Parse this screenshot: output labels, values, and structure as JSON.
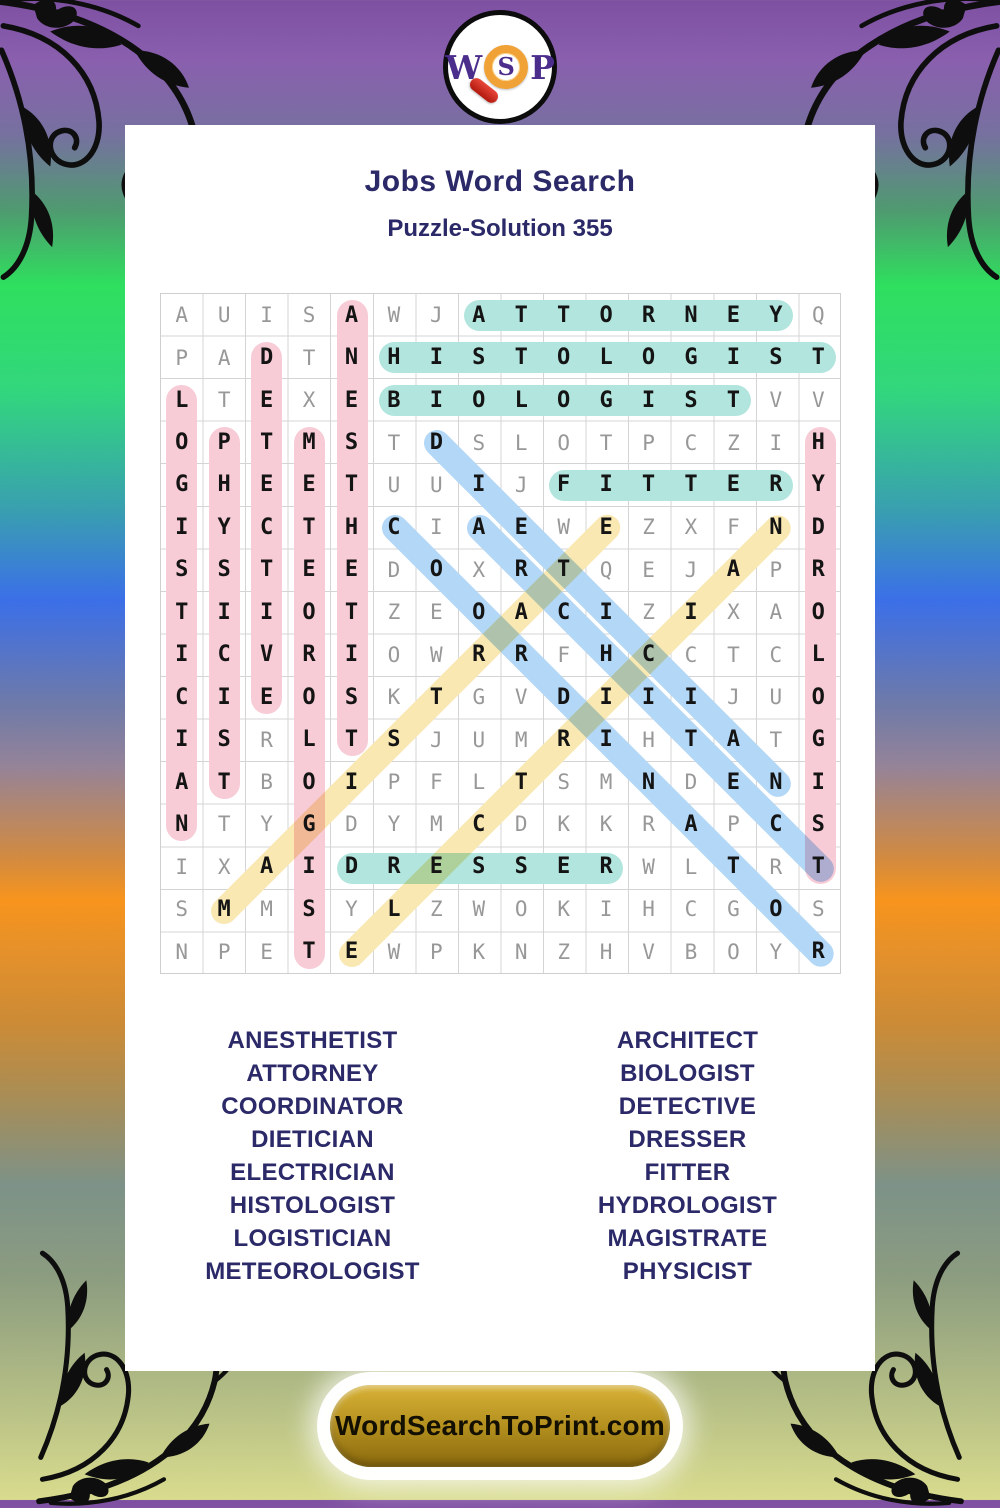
{
  "logo": {
    "w": "W",
    "s": "S",
    "p": "P"
  },
  "header": {
    "title": "Jobs Word Search",
    "subtitle": "Puzzle-Solution 355"
  },
  "puzzle": {
    "grid_size": 16,
    "rows": [
      "AUISAWJATTORNEYQ",
      "PADTNHISTOLOGIST",
      "LTEXEBIOLOGISTVV",
      "OPTMSTDSLOTPCZIH",
      "GHEETUUIJFITTERY",
      "IYCTHCIAEWEZXFND",
      "SSTEEDOXRTQEJAPR",
      "TIIOTZEOACIZIXAO",
      "ICVRIOWRRFHCCTCL",
      "CIEOSKTGVDIIIJUO",
      "ISRLTSJUMRIHTATG",
      "ATBOIPFLTSMNDENI",
      "NTYGDYMCDKKRAPCS",
      "IXAIDRESSERWLTRT",
      "SMMSYLZWOKIHCGOS",
      "NPETEWPKNZHVBOYR"
    ],
    "solutions": [
      {
        "word": "ATTORNEY",
        "row": 1,
        "col": 8,
        "dir": "right",
        "color": "teal"
      },
      {
        "word": "HISTOLOGIST",
        "row": 2,
        "col": 6,
        "dir": "right",
        "color": "teal"
      },
      {
        "word": "BIOLOGIST",
        "row": 3,
        "col": 6,
        "dir": "right",
        "color": "teal"
      },
      {
        "word": "FITTER",
        "row": 5,
        "col": 10,
        "dir": "right",
        "color": "teal"
      },
      {
        "word": "DRESSER",
        "row": 14,
        "col": 5,
        "dir": "right",
        "color": "teal"
      },
      {
        "word": "LOGISTICIAN",
        "row": 3,
        "col": 1,
        "dir": "down",
        "color": "pink"
      },
      {
        "word": "PHYSICIST",
        "row": 4,
        "col": 2,
        "dir": "down",
        "color": "pink"
      },
      {
        "word": "DETECTIVE",
        "row": 2,
        "col": 3,
        "dir": "down",
        "color": "pink"
      },
      {
        "word": "METEOROLOGIST",
        "row": 4,
        "col": 4,
        "dir": "down",
        "color": "pink"
      },
      {
        "word": "ANESTHETIST",
        "row": 1,
        "col": 5,
        "dir": "down",
        "color": "pink"
      },
      {
        "word": "HYDROLOGIST",
        "row": 4,
        "col": 16,
        "dir": "down",
        "color": "pink"
      },
      {
        "word": "DIETICIAN",
        "row": 4,
        "col": 7,
        "dir": "down-right",
        "color": "blue"
      },
      {
        "word": "COORDINATOR",
        "row": 6,
        "col": 6,
        "dir": "down-right",
        "color": "blue"
      },
      {
        "word": "ARCHITECT",
        "row": 6,
        "col": 8,
        "dir": "down-right",
        "color": "blue"
      },
      {
        "word": "MAGISTRATE",
        "row": 15,
        "col": 2,
        "dir": "up-right",
        "color": "yellow"
      },
      {
        "word": "ELECTRICIAN",
        "row": 16,
        "col": 5,
        "dir": "up-right",
        "color": "yellow"
      }
    ]
  },
  "word_list": {
    "left": [
      "ANESTHETIST",
      "ATTORNEY",
      "COORDINATOR",
      "DIETICIAN",
      "ELECTRICIAN",
      "HISTOLOGIST",
      "LOGISTICIAN",
      "METEOROLOGIST"
    ],
    "right": [
      "ARCHITECT",
      "BIOLOGIST",
      "DETECTIVE",
      "DRESSER",
      "FITTER",
      "HYDROLOGIST",
      "MAGISTRATE",
      "PHYSICIST"
    ]
  },
  "footer": {
    "site_label": "WordSearchToPrint.com"
  },
  "colors": {
    "pink": "#f8ccd7",
    "teal": "#b2e5de",
    "blue": "#b3d7f6",
    "yellow": "#f9e8b2",
    "navy": "#2b2968",
    "gold": "#b08c1d"
  }
}
